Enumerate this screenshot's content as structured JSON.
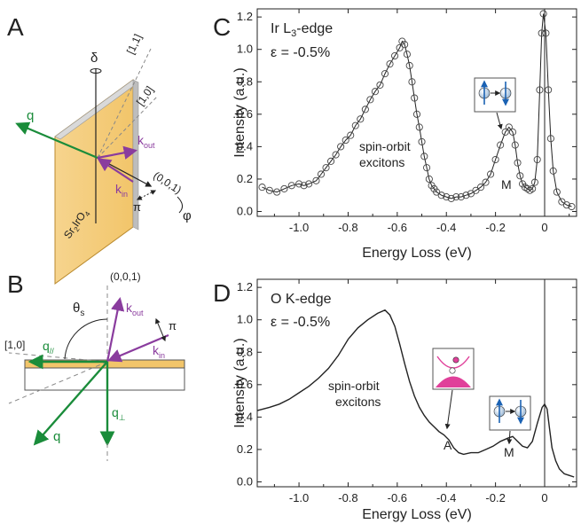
{
  "panels": {
    "A": {
      "label": "A",
      "delta": "δ",
      "q": "q",
      "dir_11": "[1,1]",
      "dir_10": "[1,0]",
      "dir_001": "(0,0,1)",
      "kout": "k",
      "kout_sub": "out",
      "kin": "k",
      "kin_sub": "in",
      "pi": "π",
      "phi": "φ",
      "sample": "Sr",
      "sample_sub1": "2",
      "sample_mid": "IrO",
      "sample_sub2": "4"
    },
    "B": {
      "label": "B",
      "dir_001": "(0,0,1)",
      "dir_10": "[1,0]",
      "theta": "θ",
      "theta_sub": "s",
      "kout": "k",
      "kout_sub": "out",
      "kin": "k",
      "kin_sub": "in",
      "pi": "π",
      "qpar": "q",
      "qpar_sub": "//",
      "q": "q",
      "qperp": "q",
      "qperp_sub": "⊥"
    },
    "C": {
      "label": "C"
    },
    "D": {
      "label": "D"
    }
  },
  "chart_data": [
    {
      "type": "line",
      "title": "Ir L3-edge",
      "title_main": "Ir L",
      "title_sub": "3",
      "title_rest": "-edge",
      "strain": "ε = -0.5%",
      "xlabel": "Energy Loss (eV)",
      "ylabel": "Intensity (a.u.)",
      "xlim": [
        -1.17,
        0.13
      ],
      "ylim": [
        -0.03,
        1.25
      ],
      "xticks": [
        "-1.0",
        "-0.8",
        "-0.6",
        "-0.4",
        "-0.2",
        "0"
      ],
      "xtick_values": [
        -1.0,
        -0.8,
        -0.6,
        -0.4,
        -0.2,
        0.0
      ],
      "yticks": [
        "0.0",
        "0.2",
        "0.4",
        "0.6",
        "0.8",
        "1.0",
        "1.2"
      ],
      "ytick_values": [
        0.0,
        0.2,
        0.4,
        0.6,
        0.8,
        1.0,
        1.2
      ],
      "markers": "open-circle",
      "annotations": {
        "excitons": [
          "spin-orbit",
          "excitons"
        ],
        "M": "M"
      },
      "points": [
        [
          -1.15,
          0.15
        ],
        [
          -1.12,
          0.13
        ],
        [
          -1.09,
          0.12
        ],
        [
          -1.06,
          0.14
        ],
        [
          -1.03,
          0.16
        ],
        [
          -1.0,
          0.17
        ],
        [
          -0.98,
          0.16
        ],
        [
          -0.96,
          0.17
        ],
        [
          -0.93,
          0.19
        ],
        [
          -0.91,
          0.23
        ],
        [
          -0.89,
          0.27
        ],
        [
          -0.87,
          0.31
        ],
        [
          -0.85,
          0.35
        ],
        [
          -0.83,
          0.4
        ],
        [
          -0.81,
          0.44
        ],
        [
          -0.79,
          0.47
        ],
        [
          -0.77,
          0.53
        ],
        [
          -0.75,
          0.57
        ],
        [
          -0.73,
          0.63
        ],
        [
          -0.71,
          0.69
        ],
        [
          -0.69,
          0.74
        ],
        [
          -0.67,
          0.78
        ],
        [
          -0.65,
          0.85
        ],
        [
          -0.63,
          0.91
        ],
        [
          -0.61,
          0.96
        ],
        [
          -0.59,
          1.01
        ],
        [
          -0.58,
          1.05
        ],
        [
          -0.57,
          1.03
        ],
        [
          -0.56,
          0.97
        ],
        [
          -0.55,
          0.9
        ],
        [
          -0.54,
          0.8
        ],
        [
          -0.53,
          0.7
        ],
        [
          -0.52,
          0.6
        ],
        [
          -0.51,
          0.52
        ],
        [
          -0.5,
          0.43
        ],
        [
          -0.49,
          0.34
        ],
        [
          -0.48,
          0.27
        ],
        [
          -0.47,
          0.2
        ],
        [
          -0.46,
          0.16
        ],
        [
          -0.45,
          0.14
        ],
        [
          -0.44,
          0.12
        ],
        [
          -0.42,
          0.1
        ],
        [
          -0.4,
          0.09
        ],
        [
          -0.38,
          0.08
        ],
        [
          -0.36,
          0.09
        ],
        [
          -0.34,
          0.09
        ],
        [
          -0.32,
          0.1
        ],
        [
          -0.3,
          0.11
        ],
        [
          -0.28,
          0.13
        ],
        [
          -0.26,
          0.15
        ],
        [
          -0.24,
          0.18
        ],
        [
          -0.22,
          0.23
        ],
        [
          -0.2,
          0.32
        ],
        [
          -0.18,
          0.41
        ],
        [
          -0.16,
          0.49
        ],
        [
          -0.145,
          0.52
        ],
        [
          -0.13,
          0.49
        ],
        [
          -0.12,
          0.41
        ],
        [
          -0.11,
          0.3
        ],
        [
          -0.1,
          0.22
        ],
        [
          -0.09,
          0.17
        ],
        [
          -0.08,
          0.15
        ],
        [
          -0.07,
          0.14
        ],
        [
          -0.06,
          0.13
        ],
        [
          -0.05,
          0.14
        ],
        [
          -0.04,
          0.18
        ],
        [
          -0.03,
          0.32
        ],
        [
          -0.02,
          0.75
        ],
        [
          -0.012,
          1.1
        ],
        [
          -0.005,
          1.22
        ],
        [
          0.005,
          1.1
        ],
        [
          0.015,
          0.75
        ],
        [
          0.025,
          0.45
        ],
        [
          0.035,
          0.25
        ],
        [
          0.05,
          0.12
        ],
        [
          0.07,
          0.06
        ],
        [
          0.09,
          0.04
        ],
        [
          0.11,
          0.03
        ]
      ]
    },
    {
      "type": "line",
      "title": "O K-edge",
      "strain": "ε = -0.5%",
      "xlabel": "Energy Loss (eV)",
      "ylabel": "Intensity (a.u.)",
      "xlim": [
        -1.17,
        0.13
      ],
      "ylim": [
        -0.03,
        1.25
      ],
      "xticks": [
        "-1.0",
        "-0.8",
        "-0.6",
        "-0.4",
        "-0.2",
        "0"
      ],
      "xtick_values": [
        -1.0,
        -0.8,
        -0.6,
        -0.4,
        -0.2,
        0.0
      ],
      "yticks": [
        "0.0",
        "0.2",
        "0.4",
        "0.6",
        "0.8",
        "1.0",
        "1.2"
      ],
      "ytick_values": [
        0.0,
        0.2,
        0.4,
        0.6,
        0.8,
        1.0,
        1.2
      ],
      "annotations": {
        "excitons": [
          "spin-orbit",
          "excitons"
        ],
        "A": "A",
        "M": "M"
      },
      "points": [
        [
          -1.17,
          0.44
        ],
        [
          -1.12,
          0.46
        ],
        [
          -1.08,
          0.48
        ],
        [
          -1.04,
          0.51
        ],
        [
          -1.0,
          0.55
        ],
        [
          -0.96,
          0.59
        ],
        [
          -0.92,
          0.64
        ],
        [
          -0.88,
          0.7
        ],
        [
          -0.84,
          0.78
        ],
        [
          -0.8,
          0.88
        ],
        [
          -0.76,
          0.95
        ],
        [
          -0.72,
          1.0
        ],
        [
          -0.68,
          1.04
        ],
        [
          -0.65,
          1.06
        ],
        [
          -0.63,
          1.03
        ],
        [
          -0.61,
          0.96
        ],
        [
          -0.59,
          0.85
        ],
        [
          -0.57,
          0.73
        ],
        [
          -0.55,
          0.62
        ],
        [
          -0.53,
          0.53
        ],
        [
          -0.51,
          0.46
        ],
        [
          -0.49,
          0.41
        ],
        [
          -0.47,
          0.37
        ],
        [
          -0.45,
          0.34
        ],
        [
          -0.43,
          0.31
        ],
        [
          -0.41,
          0.29
        ],
        [
          -0.39,
          0.26
        ],
        [
          -0.37,
          0.21
        ],
        [
          -0.35,
          0.18
        ],
        [
          -0.33,
          0.17
        ],
        [
          -0.3,
          0.18
        ],
        [
          -0.27,
          0.18
        ],
        [
          -0.24,
          0.2
        ],
        [
          -0.21,
          0.22
        ],
        [
          -0.18,
          0.25
        ],
        [
          -0.15,
          0.27
        ],
        [
          -0.13,
          0.28
        ],
        [
          -0.11,
          0.25
        ],
        [
          -0.09,
          0.22
        ],
        [
          -0.07,
          0.21
        ],
        [
          -0.05,
          0.25
        ],
        [
          -0.03,
          0.36
        ],
        [
          -0.01,
          0.46
        ],
        [
          0.0,
          0.48
        ],
        [
          0.01,
          0.45
        ],
        [
          0.02,
          0.33
        ],
        [
          0.03,
          0.21
        ],
        [
          0.045,
          0.13
        ],
        [
          0.06,
          0.08
        ],
        [
          0.08,
          0.05
        ],
        [
          0.1,
          0.04
        ],
        [
          0.12,
          0.03
        ]
      ]
    }
  ],
  "colors": {
    "green": "#1a8c3a",
    "purple": "#8a3c9e",
    "orange": "#f2c76e",
    "magenta": "#e0409a",
    "blue": "#1b62b3",
    "black": "#222222"
  }
}
